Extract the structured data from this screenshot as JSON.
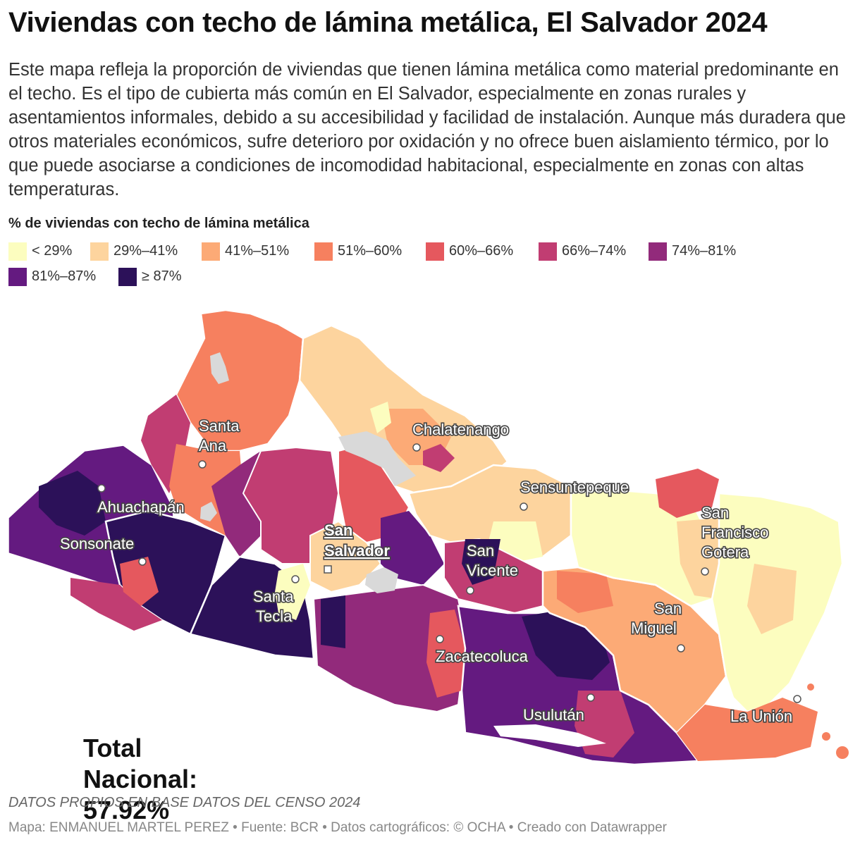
{
  "header": {
    "title": "Viviendas con techo de lámina metálica, El Salvador 2024",
    "description": "Este mapa refleja la proporción de viviendas que tienen lámina metálica como material predominante en el techo. Es el tipo de cubierta más común en El Salvador, especialmente en zonas rurales y asentamientos informales, debido a su accesibilidad y facilidad de instalación. Aunque más duradera que otros materiales económicos, sufre deterioro por oxidación y no ofrece buen aislamiento térmico, por lo que puede asociarse a condiciones de incomodidad habitacional, especialmente en zonas con altas temperaturas."
  },
  "legend": {
    "title": "% de viviendas con techo de lámina metálica",
    "items": [
      {
        "label": "< 29%",
        "color": "#fcfdbf"
      },
      {
        "label": "29%–41%",
        "color": "#fdd49e"
      },
      {
        "label": "41%–51%",
        "color": "#fcaa76"
      },
      {
        "label": "51%–60%",
        "color": "#f6805f"
      },
      {
        "label": "60%–66%",
        "color": "#e5585e"
      },
      {
        "label": "66%–74%",
        "color": "#c13d72"
      },
      {
        "label": "74%–81%",
        "color": "#922a7b"
      },
      {
        "label": "81%–87%",
        "color": "#641a80"
      },
      {
        "label": "≥ 87%",
        "color": "#2c1159"
      }
    ]
  },
  "map": {
    "cities": [
      {
        "name": "Santa Ana",
        "lines": [
          "Santa",
          "Ana"
        ],
        "capital": false
      },
      {
        "name": "Ahuachapán",
        "lines": [
          "Ahuachapán"
        ],
        "capital": false
      },
      {
        "name": "Sonsonate",
        "lines": [
          "Sonsonate"
        ],
        "capital": false
      },
      {
        "name": "Chalatenango",
        "lines": [
          "Chalatenango"
        ],
        "capital": false
      },
      {
        "name": "Sensuntepeque",
        "lines": [
          "Sensuntepeque"
        ],
        "capital": false
      },
      {
        "name": "San Francisco Gotera",
        "lines": [
          "San",
          "Francisco",
          "Gotera"
        ],
        "capital": false
      },
      {
        "name": "San Salvador",
        "lines": [
          "San",
          "Salvador"
        ],
        "capital": true
      },
      {
        "name": "Santa Tecla",
        "lines": [
          "Santa",
          "Tecla"
        ],
        "capital": false
      },
      {
        "name": "San Vicente",
        "lines": [
          "San",
          "Vicente"
        ],
        "capital": false
      },
      {
        "name": "Zacatecoluca",
        "lines": [
          "Zacatecoluca"
        ],
        "capital": false
      },
      {
        "name": "San Miguel",
        "lines": [
          "San",
          "Miguel"
        ],
        "capital": false
      },
      {
        "name": "Usulután",
        "lines": [
          "Usulután"
        ],
        "capital": false
      },
      {
        "name": "La Unión",
        "lines": [
          "La Unión"
        ],
        "capital": false
      }
    ]
  },
  "total": {
    "line1": "Total",
    "line2": "Nacional:",
    "value": "57.92%"
  },
  "footer": {
    "note": "DATOS PROPIOS EN BASE DATOS DEL CENSO 2024",
    "byline": "Mapa: ENMANUEL MARTEL PEREZ • Fuente: BCR • Datos cartográficos: © OCHA  • Creado con Datawrapper"
  }
}
